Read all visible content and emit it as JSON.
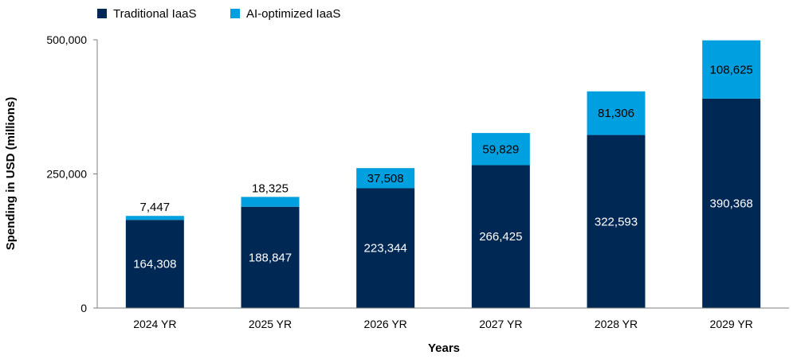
{
  "chart_data": {
    "type": "bar",
    "stacked": true,
    "categories": [
      "2024 YR",
      "2025 YR",
      "2026 YR",
      "2027 YR",
      "2028 YR",
      "2029 YR"
    ],
    "series": [
      {
        "name": "Traditional IaaS",
        "color": "#002855",
        "label_color": "#ffffff",
        "values": [
          164308,
          188847,
          223344,
          266425,
          322593,
          390368
        ]
      },
      {
        "name": "AI-optimized IaaS",
        "color": "#009fdf",
        "label_color": "#000000",
        "values": [
          7447,
          18325,
          37508,
          59829,
          81306,
          108625
        ]
      }
    ],
    "xlabel": "Years",
    "ylabel": "Spending in USD (millions)",
    "ylim": [
      0,
      500000
    ],
    "yticks": [
      0,
      250000,
      500000
    ],
    "ytick_labels": [
      "0",
      "250,000",
      "500,000"
    ],
    "value_labels": [
      [
        "164,308",
        "188,847",
        "223,344",
        "266,425",
        "322,593",
        "390,368"
      ],
      [
        "7,447",
        "18,325",
        "37,508",
        "59,829",
        "81,306",
        "108,625"
      ]
    ],
    "grid": false,
    "legend_position": "top-left"
  }
}
